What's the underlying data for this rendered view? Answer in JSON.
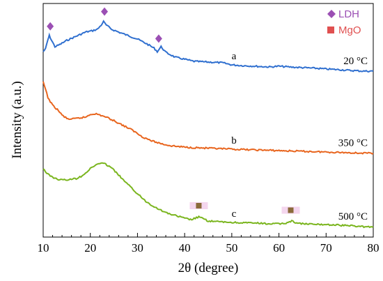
{
  "chart_data": {
    "type": "line",
    "xlabel": "2θ (degree)",
    "ylabel": "Intensity (a.u.)",
    "xlim": [
      10,
      80
    ],
    "xticks": [
      10,
      20,
      30,
      40,
      50,
      60,
      70,
      80
    ],
    "y_tick_labels": false,
    "grid": false,
    "legend": {
      "placement": "top-right",
      "entries": [
        {
          "label": "LDH",
          "symbol": "diamond",
          "color": "#9b4fb4"
        },
        {
          "label": "MgO",
          "symbol": "square",
          "color": "#e05050"
        }
      ]
    },
    "series": [
      {
        "letter": "a",
        "temperature": "20 °C",
        "color": "#2f6fcf",
        "points": [
          [
            10,
            74
          ],
          [
            10.5,
            70
          ],
          [
            11,
            57
          ],
          [
            11.3,
            51
          ],
          [
            11.8,
            58
          ],
          [
            12.5,
            67
          ],
          [
            13.5,
            64
          ],
          [
            15,
            58
          ],
          [
            17,
            52
          ],
          [
            19,
            46
          ],
          [
            20.5,
            44
          ],
          [
            21.5,
            42
          ],
          [
            22.3,
            36
          ],
          [
            22.8,
            31
          ],
          [
            23.4,
            36
          ],
          [
            24.5,
            42
          ],
          [
            26,
            46
          ],
          [
            28,
            51
          ],
          [
            30,
            56
          ],
          [
            32,
            63
          ],
          [
            33.5,
            69
          ],
          [
            34.2,
            74
          ],
          [
            35,
            67
          ],
          [
            36,
            75
          ],
          [
            38,
            82
          ],
          [
            40,
            85
          ],
          [
            42,
            88
          ],
          [
            45,
            89
          ],
          [
            48,
            90
          ],
          [
            50,
            93
          ],
          [
            52,
            94
          ],
          [
            55,
            95
          ],
          [
            58,
            96
          ],
          [
            60,
            95
          ],
          [
            62,
            96
          ],
          [
            65,
            97
          ],
          [
            68,
            98
          ],
          [
            70,
            99
          ],
          [
            73,
            100
          ],
          [
            75,
            101
          ],
          [
            78,
            102
          ],
          [
            80,
            102
          ]
        ]
      },
      {
        "letter": "b",
        "temperature": "350 °C",
        "color": "#e8651e",
        "points": [
          [
            10,
            118
          ],
          [
            10.5,
            128
          ],
          [
            11,
            140
          ],
          [
            12,
            151
          ],
          [
            13,
            157
          ],
          [
            14,
            165
          ],
          [
            15,
            170
          ],
          [
            16,
            171
          ],
          [
            18,
            169
          ],
          [
            19,
            168
          ],
          [
            20,
            164
          ],
          [
            21,
            163
          ],
          [
            22,
            165
          ],
          [
            23,
            167
          ],
          [
            24,
            170
          ],
          [
            25,
            173
          ],
          [
            27,
            180
          ],
          [
            29,
            187
          ],
          [
            31,
            196
          ],
          [
            33,
            202
          ],
          [
            35,
            206
          ],
          [
            37,
            209
          ],
          [
            40,
            211
          ],
          [
            43,
            212
          ],
          [
            46,
            213
          ],
          [
            50,
            214
          ],
          [
            55,
            215
          ],
          [
            60,
            216
          ],
          [
            65,
            217
          ],
          [
            70,
            218
          ],
          [
            75,
            219
          ],
          [
            80,
            220
          ]
        ]
      },
      {
        "letter": "c",
        "temperature": "500 °C",
        "color": "#7ab51e",
        "points": [
          [
            10,
            242
          ],
          [
            11,
            250
          ],
          [
            12,
            254
          ],
          [
            13,
            257
          ],
          [
            14,
            258
          ],
          [
            15,
            258
          ],
          [
            16,
            257
          ],
          [
            17,
            256
          ],
          [
            18,
            253
          ],
          [
            19,
            248
          ],
          [
            20,
            242
          ],
          [
            21,
            237
          ],
          [
            22,
            234
          ],
          [
            23,
            235
          ],
          [
            24,
            238
          ],
          [
            25,
            244
          ],
          [
            26,
            251
          ],
          [
            27,
            258
          ],
          [
            28,
            265
          ],
          [
            29,
            271
          ],
          [
            30,
            278
          ],
          [
            31,
            284
          ],
          [
            32,
            290
          ],
          [
            34,
            298
          ],
          [
            36,
            305
          ],
          [
            38,
            309
          ],
          [
            40,
            313
          ],
          [
            41.5,
            315
          ],
          [
            43,
            311
          ],
          [
            44,
            314
          ],
          [
            45,
            317
          ],
          [
            47,
            318
          ],
          [
            50,
            319
          ],
          [
            55,
            320
          ],
          [
            58,
            321
          ],
          [
            60,
            321
          ],
          [
            61.5,
            320
          ],
          [
            62.7,
            317
          ],
          [
            63.5,
            319
          ],
          [
            65,
            321
          ],
          [
            68,
            322
          ],
          [
            70,
            322
          ],
          [
            73,
            323
          ],
          [
            76,
            324
          ],
          [
            78,
            325
          ],
          [
            80,
            326
          ]
        ]
      }
    ],
    "peak_markers": [
      {
        "series": "a",
        "phase": "LDH",
        "x": 11.5
      },
      {
        "series": "a",
        "phase": "LDH",
        "x": 23.0
      },
      {
        "series": "a",
        "phase": "LDH",
        "x": 34.5
      },
      {
        "series": "c",
        "phase": "MgO",
        "x": 43.0
      },
      {
        "series": "c",
        "phase": "MgO",
        "x": 62.5
      }
    ]
  }
}
